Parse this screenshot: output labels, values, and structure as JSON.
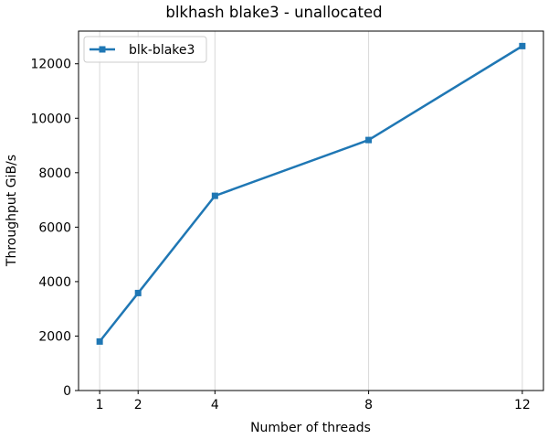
{
  "chart_data": {
    "type": "line",
    "title": "blkhash blake3 - unallocated",
    "xlabel": "Number of threads",
    "ylabel": "Throughput GiB/s",
    "x": [
      1,
      2,
      4,
      8,
      12
    ],
    "xticks": [
      1,
      2,
      4,
      8,
      12
    ],
    "yticks": [
      0,
      2000,
      4000,
      6000,
      8000,
      10000,
      12000
    ],
    "xlim": [
      0.45,
      12.55
    ],
    "ylim": [
      0,
      13200
    ],
    "grid": "x-only",
    "legend_position": "top-left",
    "series": [
      {
        "name": "blk-blake3",
        "color": "#1f77b4",
        "marker": "square",
        "values": [
          1800,
          3580,
          7150,
          9200,
          12650
        ]
      }
    ]
  }
}
